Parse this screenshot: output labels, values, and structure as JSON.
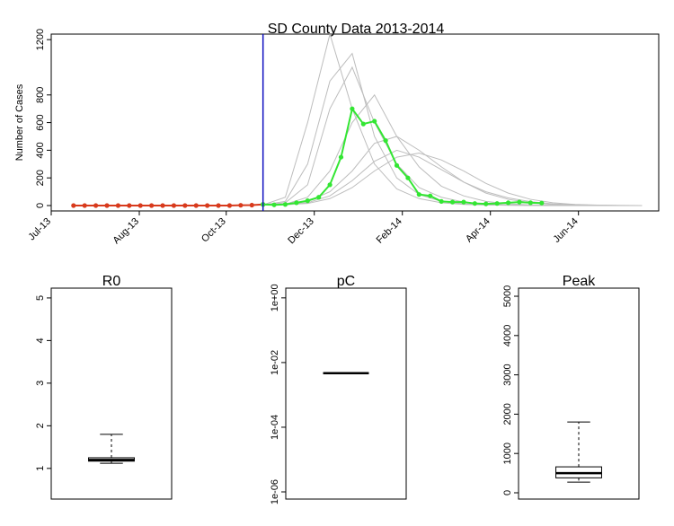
{
  "chart_data": [
    {
      "type": "line",
      "title": "SD County Data 2013-2014",
      "ylabel": "Number of Cases",
      "xlim": [
        -2,
        52.5
      ],
      "ylim": [
        -39,
        1240
      ],
      "xticks": [
        {
          "value": -2,
          "label": "Jul-13"
        },
        {
          "value": 5.9,
          "label": "Aug-13"
        },
        {
          "value": 13.7,
          "label": "Oct-13"
        },
        {
          "value": 21.6,
          "label": "Dec-13"
        },
        {
          "value": 29.5,
          "label": "Feb-14"
        },
        {
          "value": 37.4,
          "label": "Apr-14"
        },
        {
          "value": 45.3,
          "label": "Jun-14"
        }
      ],
      "yticks": [
        0,
        200,
        400,
        600,
        800,
        1200
      ],
      "vline": {
        "x": 17,
        "color": "#1010c0"
      },
      "series": [
        {
          "color": "#bdbdbd",
          "markers": false,
          "x": [
            17,
            19,
            21,
            23,
            25,
            27,
            29,
            31,
            33,
            35,
            37,
            39,
            41,
            43,
            45,
            47,
            49,
            51
          ],
          "values": [
            5,
            60,
            600,
            1240,
            700,
            300,
            120,
            50,
            20,
            8,
            4,
            2,
            1,
            0,
            0,
            0,
            0,
            0
          ]
        },
        {
          "color": "#bdbdbd",
          "markers": false,
          "x": [
            17,
            19,
            21,
            23,
            25,
            27,
            29,
            31,
            33,
            35,
            37,
            39,
            41,
            43,
            45,
            47,
            49,
            51
          ],
          "values": [
            5,
            20,
            150,
            700,
            1000,
            600,
            300,
            130,
            60,
            25,
            10,
            5,
            2,
            1,
            0,
            0,
            0,
            0
          ]
        },
        {
          "color": "#bdbdbd",
          "markers": false,
          "x": [
            17,
            19,
            21,
            23,
            25,
            27,
            29,
            31,
            33,
            35,
            37,
            39,
            41,
            43,
            45,
            47,
            49,
            51
          ],
          "values": [
            5,
            10,
            60,
            250,
            600,
            800,
            500,
            280,
            140,
            70,
            30,
            12,
            5,
            2,
            1,
            0,
            0,
            0
          ]
        },
        {
          "color": "#bdbdbd",
          "markers": false,
          "x": [
            17,
            19,
            21,
            23,
            25,
            27,
            29,
            31,
            33,
            35,
            37,
            39,
            41,
            43,
            45,
            47,
            49,
            51
          ],
          "values": [
            5,
            8,
            30,
            100,
            250,
            450,
            500,
            400,
            280,
            170,
            90,
            45,
            20,
            8,
            3,
            1,
            0,
            0
          ]
        },
        {
          "color": "#bdbdbd",
          "markers": false,
          "x": [
            17,
            19,
            21,
            23,
            25,
            27,
            29,
            31,
            33,
            35,
            37,
            39,
            41,
            43,
            45,
            47,
            49,
            51
          ],
          "values": [
            5,
            6,
            15,
            50,
            130,
            250,
            350,
            380,
            330,
            250,
            160,
            90,
            45,
            20,
            8,
            3,
            1,
            0
          ]
        },
        {
          "color": "#bdbdbd",
          "markers": false,
          "x": [
            17,
            19,
            21,
            23,
            25,
            27,
            29,
            31,
            33,
            35,
            37,
            39,
            41,
            43,
            45,
            47,
            49,
            51
          ],
          "values": [
            5,
            30,
            300,
            900,
            1100,
            500,
            200,
            80,
            30,
            12,
            5,
            2,
            1,
            0,
            0,
            0,
            0,
            0
          ]
        },
        {
          "color": "#bdbdbd",
          "markers": false,
          "x": [
            17,
            19,
            21,
            23,
            25,
            27,
            29,
            31,
            33,
            35,
            37,
            39,
            41,
            43,
            45,
            47,
            49,
            51
          ],
          "values": [
            5,
            8,
            20,
            70,
            180,
            320,
            400,
            350,
            260,
            170,
            100,
            55,
            28,
            12,
            5,
            2,
            1,
            0
          ]
        },
        {
          "color": "#d83a1c",
          "markers": true,
          "x": [
            0,
            1,
            2,
            3,
            4,
            5,
            6,
            7,
            8,
            9,
            10,
            11,
            12,
            13,
            14,
            15,
            16,
            17
          ],
          "values": [
            0,
            0,
            0,
            0,
            0,
            0,
            0,
            0,
            0,
            0,
            0,
            0,
            0,
            0,
            0,
            2,
            3,
            8
          ]
        },
        {
          "color": "#33e633",
          "markers": true,
          "x": [
            17,
            18,
            19,
            20,
            21,
            22,
            23,
            24,
            25,
            26,
            27,
            28,
            29,
            30,
            31,
            32,
            33,
            34,
            35,
            36,
            37,
            38,
            39,
            40,
            41,
            42
          ],
          "values": [
            8,
            5,
            8,
            20,
            35,
            60,
            150,
            350,
            700,
            590,
            610,
            470,
            290,
            200,
            80,
            70,
            30,
            25,
            25,
            15,
            12,
            15,
            20,
            25,
            20,
            18
          ]
        }
      ]
    },
    {
      "type": "box",
      "title": "R0",
      "ylim": [
        0.28,
        5.23
      ],
      "yticks": [
        1,
        2,
        3,
        4,
        5
      ],
      "box": {
        "whisker_low": 1.12,
        "q1": 1.17,
        "median": 1.2,
        "q3": 1.25,
        "whisker_high": 1.8
      }
    },
    {
      "type": "box",
      "title": "pC",
      "log_scale": true,
      "ylim": [
        6e-07,
        2
      ],
      "yticks": [
        {
          "value": 1,
          "label": "1e+00"
        },
        {
          "value": 0.01,
          "label": "1e-02"
        },
        {
          "value": 0.0001,
          "label": "1e-04"
        },
        {
          "value": 1e-06,
          "label": "1e-06"
        }
      ],
      "box": {
        "whisker_low": 0.0047,
        "q1": 0.0047,
        "median": 0.0047,
        "q3": 0.0047,
        "whisker_high": 0.0047
      }
    },
    {
      "type": "box",
      "title": "Peak",
      "ylim": [
        -160,
        5206
      ],
      "yticks": [
        0,
        1000,
        2000,
        3000,
        4000,
        5000
      ],
      "box": {
        "whisker_low": 270,
        "q1": 380,
        "median": 500,
        "q3": 660,
        "whisker_high": 1800
      }
    }
  ]
}
